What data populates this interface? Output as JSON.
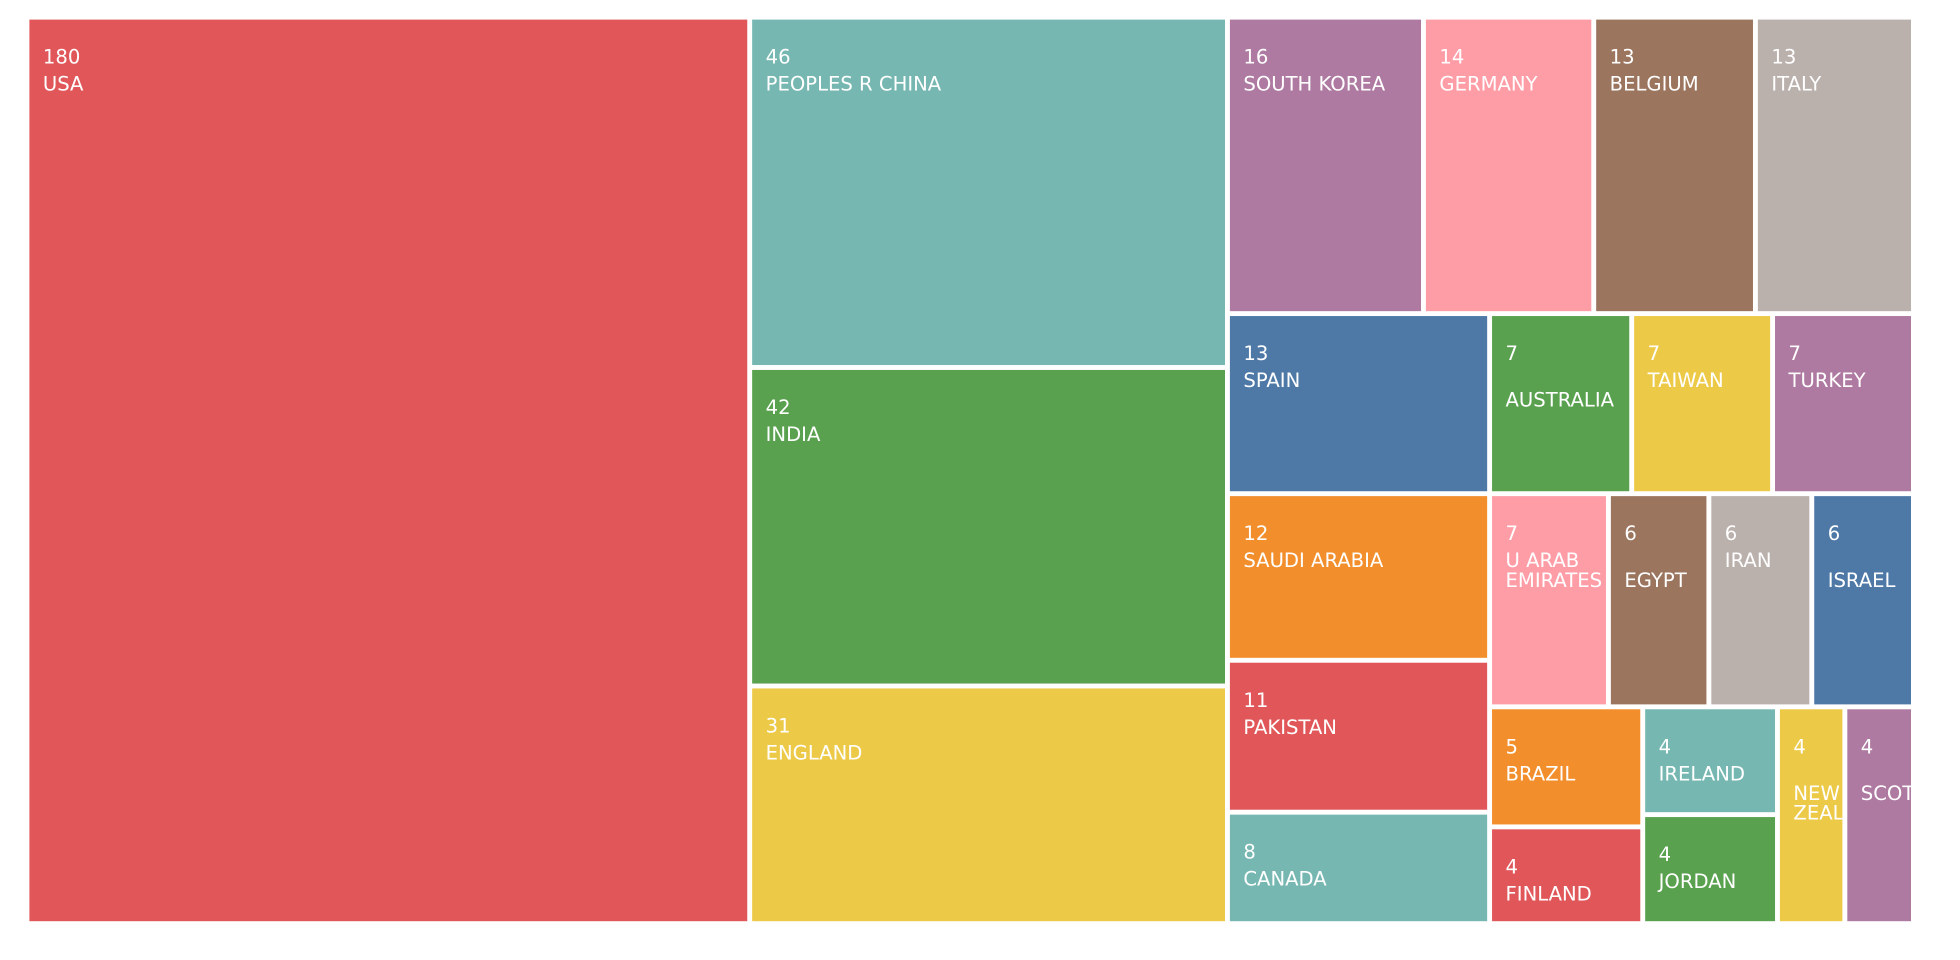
{
  "chart_data": {
    "type": "treemap",
    "colors": {
      "red": "#E15759",
      "teal": "#76B7B2",
      "green": "#59A14F",
      "yellow": "#EDC948",
      "purple": "#AF7AA1",
      "pink": "#FF9DA7",
      "brown": "#9C755F",
      "gray": "#BAB0AC",
      "blue": "#4E79A7",
      "orange": "#F28E2B"
    },
    "items": [
      {
        "name": "USA",
        "value": 180,
        "color": "red"
      },
      {
        "name": "PEOPLES R CHINA",
        "value": 46,
        "color": "teal"
      },
      {
        "name": "INDIA",
        "value": 42,
        "color": "green"
      },
      {
        "name": "ENGLAND",
        "value": 31,
        "color": "yellow"
      },
      {
        "name": "SOUTH KOREA",
        "value": 16,
        "color": "purple"
      },
      {
        "name": "GERMANY",
        "value": 14,
        "color": "pink"
      },
      {
        "name": "BELGIUM",
        "value": 13,
        "color": "brown"
      },
      {
        "name": "ITALY",
        "value": 13,
        "color": "gray"
      },
      {
        "name": "SPAIN",
        "value": 13,
        "color": "blue"
      },
      {
        "name": "AUSTRALIA",
        "value": 7,
        "color": "green"
      },
      {
        "name": "TAIWAN",
        "value": 7,
        "color": "yellow"
      },
      {
        "name": "TURKEY",
        "value": 7,
        "color": "purple"
      },
      {
        "name": "SAUDI ARABIA",
        "value": 12,
        "color": "orange"
      },
      {
        "name": "U ARAB EMIRATES",
        "value": 7,
        "color": "pink"
      },
      {
        "name": "EGYPT",
        "value": 6,
        "color": "brown"
      },
      {
        "name": "IRAN",
        "value": 6,
        "color": "gray"
      },
      {
        "name": "ISRAEL",
        "value": 6,
        "color": "blue"
      },
      {
        "name": "PAKISTAN",
        "value": 11,
        "color": "red"
      },
      {
        "name": "BRAZIL",
        "value": 5,
        "color": "orange"
      },
      {
        "name": "IRELAND",
        "value": 4,
        "color": "teal"
      },
      {
        "name": "NEW ZEALAND",
        "value": 4,
        "color": "yellow"
      },
      {
        "name": "SCOTLAND",
        "value": 4,
        "color": "purple"
      },
      {
        "name": "CANADA",
        "value": 8,
        "color": "teal"
      },
      {
        "name": "FINLAND",
        "value": 4,
        "color": "red"
      },
      {
        "name": "JORDAN",
        "value": 4,
        "color": "green"
      }
    ]
  }
}
